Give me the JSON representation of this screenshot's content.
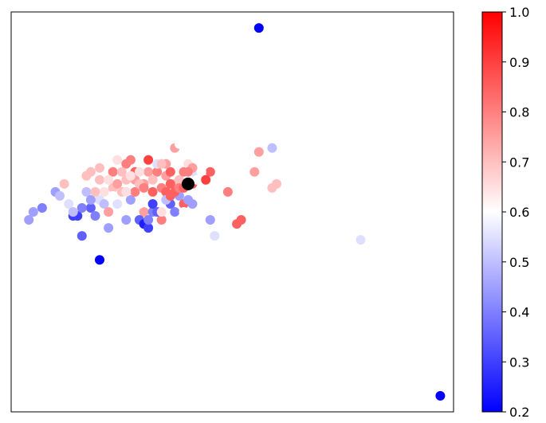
{
  "chart_data": {
    "type": "scatter",
    "title": "",
    "xlabel": "",
    "ylabel": "",
    "x_ticks_shown": false,
    "y_ticks_shown": false,
    "grid": false,
    "legend": "none",
    "colormap": "bwr",
    "colorbar": {
      "orientation": "vertical",
      "placement": "right",
      "range": [
        0.2,
        1.0
      ],
      "ticks": [
        0.2,
        0.3,
        0.4,
        0.5,
        0.6,
        0.7,
        0.8,
        0.9,
        1.0
      ],
      "tick_labels": [
        "0.2",
        "0.3",
        "0.4",
        "0.5",
        "0.6",
        "0.7",
        "0.8",
        "0.9",
        "1.0"
      ]
    },
    "highlight_point": {
      "x": 0.4,
      "y": 0.57,
      "color": "#000000"
    },
    "points": [
      [
        0.56,
        0.96,
        0.2
      ],
      [
        0.97,
        0.04,
        0.2
      ],
      [
        0.2,
        0.38,
        0.2
      ],
      [
        0.59,
        0.66,
        0.5
      ],
      [
        0.59,
        0.56,
        0.7
      ],
      [
        0.56,
        0.65,
        0.75
      ],
      [
        0.79,
        0.43,
        0.55
      ],
      [
        0.46,
        0.44,
        0.55
      ],
      [
        0.04,
        0.48,
        0.45
      ],
      [
        0.05,
        0.5,
        0.45
      ],
      [
        0.07,
        0.51,
        0.4
      ],
      [
        0.1,
        0.55,
        0.45
      ],
      [
        0.11,
        0.54,
        0.5
      ],
      [
        0.12,
        0.57,
        0.7
      ],
      [
        0.14,
        0.49,
        0.3
      ],
      [
        0.15,
        0.49,
        0.3
      ],
      [
        0.16,
        0.44,
        0.35
      ],
      [
        0.18,
        0.51,
        0.35
      ],
      [
        0.19,
        0.49,
        0.4
      ],
      [
        0.2,
        0.53,
        0.55
      ],
      [
        0.21,
        0.52,
        0.5
      ],
      [
        0.22,
        0.46,
        0.45
      ],
      [
        0.22,
        0.5,
        0.75
      ],
      [
        0.23,
        0.56,
        0.7
      ],
      [
        0.17,
        0.55,
        0.5
      ],
      [
        0.15,
        0.56,
        0.6
      ],
      [
        0.17,
        0.59,
        0.7
      ],
      [
        0.18,
        0.6,
        0.7
      ],
      [
        0.2,
        0.58,
        0.7
      ],
      [
        0.2,
        0.61,
        0.7
      ],
      [
        0.23,
        0.6,
        0.8
      ],
      [
        0.24,
        0.57,
        0.75
      ],
      [
        0.25,
        0.55,
        0.7
      ],
      [
        0.26,
        0.62,
        0.8
      ],
      [
        0.26,
        0.58,
        0.7
      ],
      [
        0.27,
        0.53,
        0.45
      ],
      [
        0.28,
        0.55,
        0.8
      ],
      [
        0.28,
        0.6,
        0.85
      ],
      [
        0.29,
        0.52,
        0.7
      ],
      [
        0.3,
        0.5,
        0.75
      ],
      [
        0.3,
        0.57,
        0.75
      ],
      [
        0.29,
        0.48,
        0.35
      ],
      [
        0.31,
        0.6,
        0.75
      ],
      [
        0.32,
        0.55,
        0.85
      ],
      [
        0.32,
        0.5,
        0.4
      ],
      [
        0.33,
        0.6,
        0.8
      ],
      [
        0.34,
        0.56,
        0.8
      ],
      [
        0.34,
        0.48,
        0.8
      ],
      [
        0.3,
        0.47,
        0.25
      ],
      [
        0.31,
        0.46,
        0.3
      ],
      [
        0.31,
        0.48,
        0.4
      ],
      [
        0.32,
        0.52,
        0.3
      ],
      [
        0.33,
        0.5,
        0.35
      ],
      [
        0.35,
        0.55,
        0.85
      ],
      [
        0.35,
        0.59,
        0.75
      ],
      [
        0.36,
        0.52,
        0.35
      ],
      [
        0.36,
        0.6,
        0.85
      ],
      [
        0.37,
        0.5,
        0.4
      ],
      [
        0.37,
        0.57,
        0.7
      ],
      [
        0.38,
        0.54,
        0.45
      ],
      [
        0.38,
        0.58,
        0.7
      ],
      [
        0.39,
        0.6,
        0.8
      ],
      [
        0.39,
        0.52,
        0.85
      ],
      [
        0.4,
        0.55,
        0.6
      ],
      [
        0.4,
        0.62,
        0.65
      ],
      [
        0.41,
        0.57,
        0.85
      ],
      [
        0.42,
        0.59,
        0.55
      ],
      [
        0.43,
        0.53,
        0.6
      ],
      [
        0.44,
        0.49,
        0.6
      ],
      [
        0.45,
        0.48,
        0.45
      ],
      [
        0.45,
        0.6,
        0.85
      ],
      [
        0.25,
        0.6,
        0.7
      ],
      [
        0.27,
        0.63,
        0.8
      ],
      [
        0.28,
        0.58,
        0.75
      ],
      [
        0.29,
        0.57,
        0.7
      ],
      [
        0.3,
        0.56,
        0.8
      ],
      [
        0.31,
        0.63,
        0.9
      ],
      [
        0.33,
        0.62,
        0.55
      ],
      [
        0.35,
        0.62,
        0.75
      ],
      [
        0.36,
        0.57,
        0.85
      ],
      [
        0.37,
        0.55,
        0.85
      ],
      [
        0.38,
        0.56,
        0.8
      ],
      [
        0.39,
        0.56,
        0.85
      ],
      [
        0.41,
        0.61,
        0.75
      ],
      [
        0.37,
        0.66,
        0.75
      ],
      [
        0.38,
        0.67,
        0.6
      ],
      [
        0.4,
        0.6,
        0.8
      ],
      [
        0.4,
        0.53,
        0.45
      ],
      [
        0.42,
        0.58,
        0.6
      ],
      [
        0.51,
        0.47,
        0.85
      ],
      [
        0.52,
        0.48,
        0.85
      ],
      [
        0.49,
        0.55,
        0.8
      ],
      [
        0.6,
        0.57,
        0.7
      ],
      [
        0.55,
        0.6,
        0.75
      ],
      [
        0.13,
        0.52,
        0.55
      ],
      [
        0.14,
        0.5,
        0.5
      ],
      [
        0.24,
        0.52,
        0.55
      ],
      [
        0.26,
        0.48,
        0.45
      ],
      [
        0.18,
        0.53,
        0.45
      ],
      [
        0.21,
        0.55,
        0.65
      ],
      [
        0.22,
        0.58,
        0.65
      ],
      [
        0.24,
        0.63,
        0.65
      ],
      [
        0.27,
        0.59,
        0.65
      ],
      [
        0.23,
        0.54,
        0.6
      ],
      [
        0.26,
        0.55,
        0.65
      ],
      [
        0.29,
        0.6,
        0.65
      ],
      [
        0.32,
        0.58,
        0.7
      ],
      [
        0.34,
        0.62,
        0.7
      ],
      [
        0.35,
        0.53,
        0.5
      ],
      [
        0.36,
        0.54,
        0.85
      ],
      [
        0.16,
        0.51,
        0.4
      ],
      [
        0.19,
        0.55,
        0.7
      ],
      [
        0.39,
        0.5,
        0.6
      ],
      [
        0.41,
        0.52,
        0.45
      ],
      [
        0.43,
        0.6,
        0.6
      ],
      [
        0.34,
        0.5,
        0.65
      ],
      [
        0.29,
        0.52,
        0.6
      ],
      [
        0.44,
        0.58,
        0.9
      ]
    ]
  }
}
